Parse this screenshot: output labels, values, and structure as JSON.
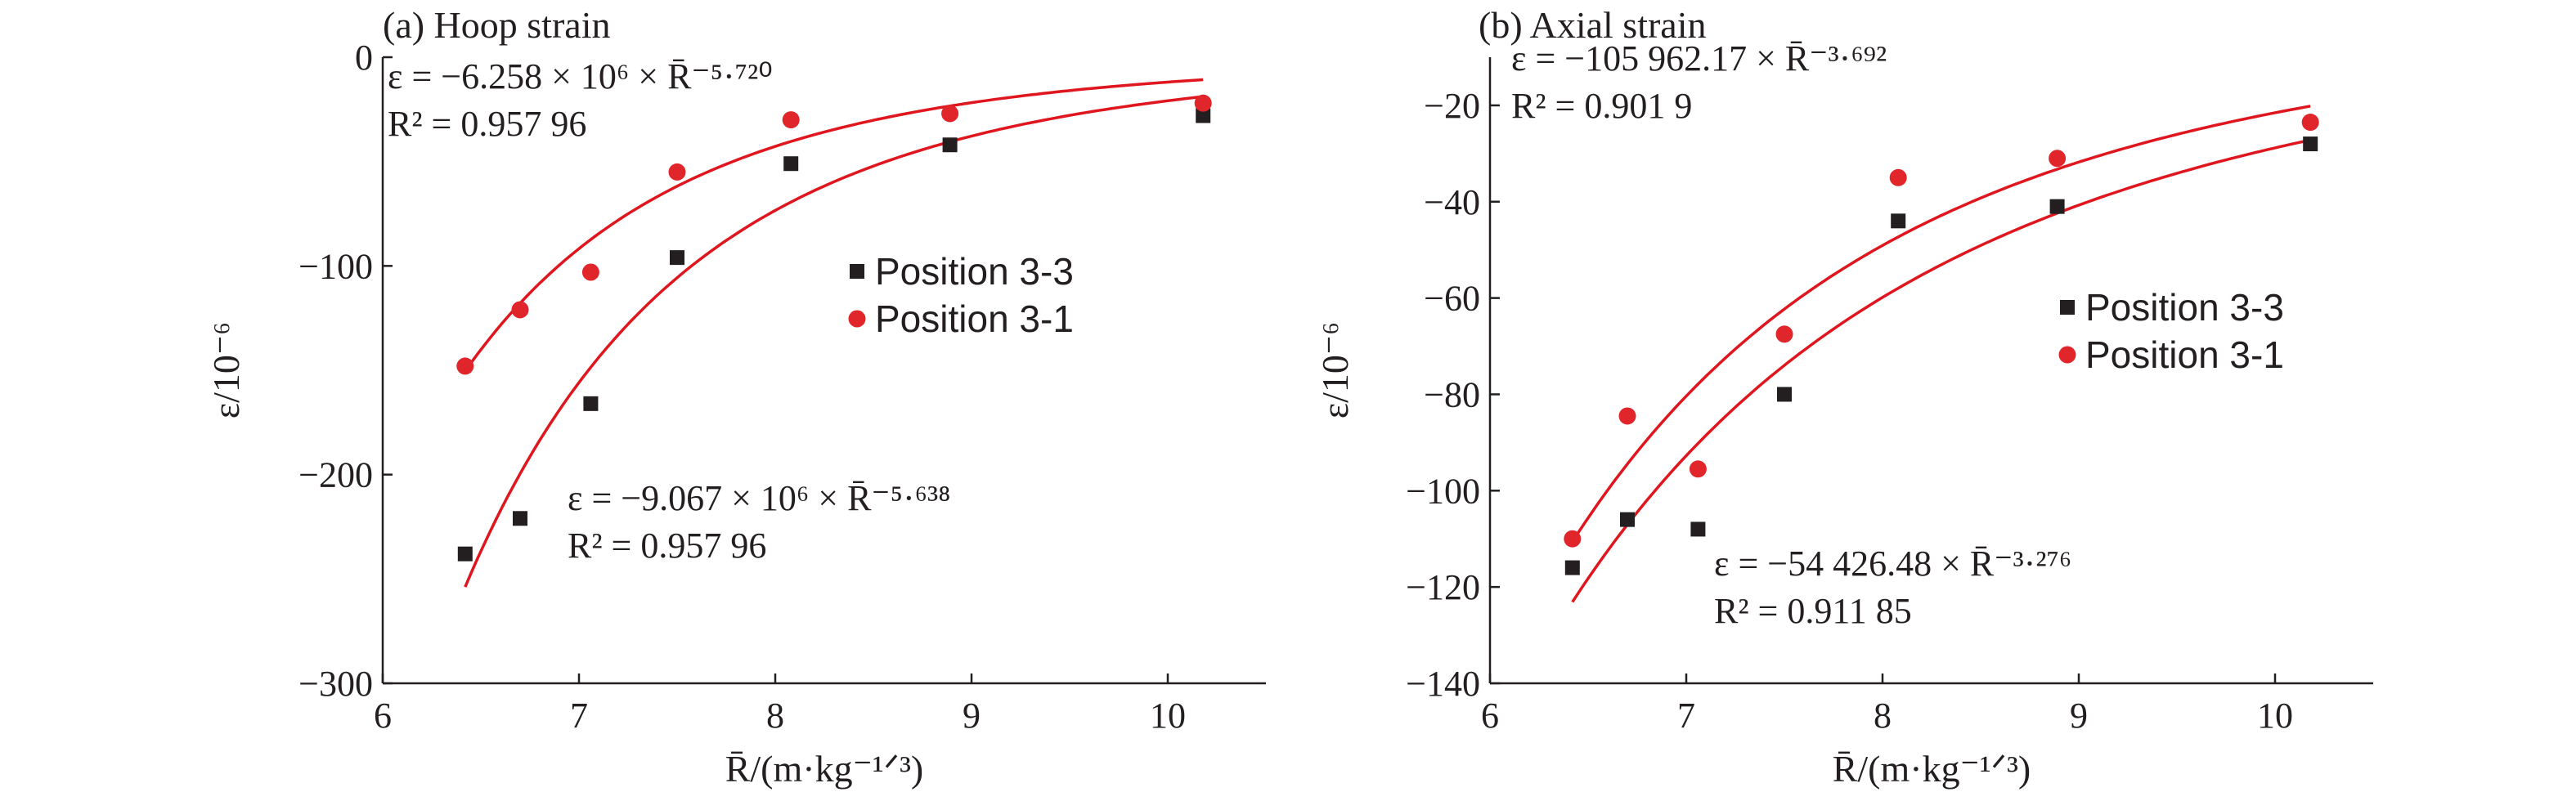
{
  "chart_data": [
    {
      "type": "scatter",
      "title": "(a) Hoop strain",
      "xlabel": "R̄/(m·kg⁻¹ᐟ³)",
      "ylabel": "ε/10⁻⁶",
      "xlim": [
        6,
        10.5
      ],
      "ylim": [
        -300,
        0
      ],
      "xticks": [
        "6",
        "7",
        "8",
        "9",
        "10"
      ],
      "yticks": [
        "0",
        "−100",
        "−200",
        "−300"
      ],
      "series": [
        {
          "name": "Position 3-3",
          "marker": "square",
          "color": "#231f20",
          "points": [
            [
              6.42,
              -238
            ],
            [
              6.7,
              -221
            ],
            [
              7.06,
              -166
            ],
            [
              7.5,
              -96
            ],
            [
              8.08,
              -51
            ],
            [
              8.89,
              -42
            ],
            [
              10.18,
              -28
            ]
          ],
          "fit": {
            "a": -9067000,
            "b": -5.638,
            "equation": "ε = −9.067 × 10⁶ × R̄⁻⁵·⁶³⁸",
            "r2": "R² = 0.957 96"
          }
        },
        {
          "name": "Position 3-1",
          "marker": "circle",
          "color": "#e0252b",
          "points": [
            [
              6.42,
              -148
            ],
            [
              6.7,
              -121
            ],
            [
              7.06,
              -103
            ],
            [
              7.5,
              -55
            ],
            [
              8.08,
              -30
            ],
            [
              8.89,
              -27
            ],
            [
              10.18,
              -22
            ]
          ],
          "fit": {
            "a": -6258000,
            "b": -5.72,
            "equation": "ε = −6.258 × 10⁶ × R̄⁻⁵·⁷²⁰",
            "r2": "R² = 0.957 96"
          }
        }
      ],
      "legend": {
        "position": "right-center",
        "items": [
          "Position 3-3",
          "Position 3-1"
        ]
      },
      "grid": false
    },
    {
      "type": "scatter",
      "title": "(b) Axial strain",
      "xlabel": "R̄/(m·kg⁻¹ᐟ³)",
      "ylabel": "ε/10⁻⁶",
      "xlim": [
        6,
        10.5
      ],
      "ylim": [
        -140,
        -10
      ],
      "xticks": [
        "6",
        "7",
        "8",
        "9",
        "10"
      ],
      "yticks": [
        "−20",
        "−40",
        "−60",
        "−80",
        "−100",
        "−120",
        "−140"
      ],
      "series": [
        {
          "name": "Position 3-3",
          "marker": "square",
          "color": "#231f20",
          "points": [
            [
              6.42,
              -116
            ],
            [
              6.7,
              -106
            ],
            [
              7.06,
              -108
            ],
            [
              7.5,
              -80
            ],
            [
              8.08,
              -44
            ],
            [
              8.89,
              -41
            ],
            [
              10.18,
              -28
            ]
          ],
          "fit": {
            "a": -54426.48,
            "b": -3.276,
            "equation": "ε = −54 426.48 × R̄⁻³·²⁷⁶",
            "r2": "R² = 0.911 85"
          }
        },
        {
          "name": "Position 3-1",
          "marker": "circle",
          "color": "#e0252b",
          "points": [
            [
              6.42,
              -110
            ],
            [
              6.7,
              -84.5
            ],
            [
              7.06,
              -95.5
            ],
            [
              7.5,
              -67.5
            ],
            [
              8.08,
              -35
            ],
            [
              8.89,
              -31
            ],
            [
              10.18,
              -23.5
            ]
          ],
          "fit": {
            "a": -105962.17,
            "b": -3.692,
            "equation": "ε = −105 962.17 × R̄⁻³·⁶⁹²",
            "r2": "R² = 0.901 9"
          }
        }
      ],
      "legend": {
        "position": "right-center",
        "items": [
          "Position 3-3",
          "Position 3-1"
        ]
      },
      "grid": false
    }
  ]
}
